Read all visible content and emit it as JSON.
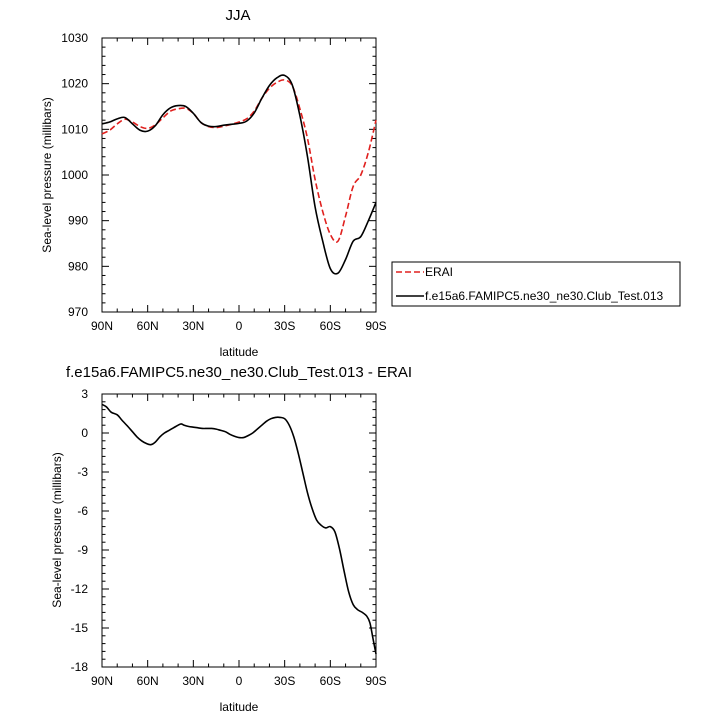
{
  "chart_data": [
    {
      "type": "line",
      "title": "JJA",
      "xlabel": "latitude",
      "ylabel": "Sea-level pressure (millibars)",
      "ylim": [
        970,
        1030
      ],
      "xlim": [
        -90,
        90
      ],
      "xticks": [
        "90N",
        "60N",
        "30N",
        "0",
        "30S",
        "60S",
        "90S"
      ],
      "yticks": [
        "970",
        "980",
        "990",
        "1000",
        "1010",
        "1020",
        "1030"
      ],
      "legend": "right",
      "series": [
        {
          "name": "ERAI",
          "color": "#e0201e",
          "dash": "dashed",
          "x": [
            -90,
            -85,
            -80,
            -75,
            -70,
            -65,
            -60,
            -55,
            -50,
            -45,
            -40,
            -35,
            -30,
            -25,
            -20,
            -15,
            -10,
            -5,
            0,
            5,
            10,
            15,
            20,
            25,
            30,
            35,
            40,
            45,
            50,
            55,
            60,
            65,
            70,
            75,
            80,
            85,
            90
          ],
          "y": [
            1009.0,
            1009.8,
            1011.2,
            1012.2,
            1011.6,
            1010.6,
            1010.2,
            1011.0,
            1012.5,
            1014.0,
            1014.5,
            1014.6,
            1013.5,
            1011.5,
            1010.6,
            1010.4,
            1010.7,
            1011.1,
            1011.6,
            1012.3,
            1014.0,
            1016.8,
            1019.0,
            1020.3,
            1020.8,
            1019.5,
            1014.5,
            1008.0,
            999.0,
            992.0,
            987.0,
            985.5,
            991.0,
            997.5,
            1000.0,
            1005.0,
            1012.0
          ]
        },
        {
          "name": "f.e15a6.FAMIPC5.ne30_ne30.Club_Test.013",
          "color": "#000000",
          "dash": "solid",
          "x": [
            -90,
            -85,
            -80,
            -75,
            -70,
            -65,
            -60,
            -55,
            -50,
            -45,
            -40,
            -35,
            -30,
            -25,
            -20,
            -15,
            -10,
            -5,
            0,
            5,
            10,
            15,
            20,
            25,
            30,
            35,
            40,
            45,
            50,
            55,
            60,
            65,
            70,
            75,
            80,
            85,
            90
          ],
          "y": [
            1011.2,
            1011.6,
            1012.3,
            1012.6,
            1011.2,
            1009.8,
            1009.6,
            1010.8,
            1013.2,
            1014.7,
            1015.2,
            1015.0,
            1013.5,
            1011.5,
            1010.7,
            1010.6,
            1010.9,
            1011.1,
            1011.3,
            1011.8,
            1013.6,
            1016.8,
            1019.6,
            1021.3,
            1021.8,
            1019.7,
            1013.0,
            1004.0,
            993.0,
            985.5,
            979.5,
            978.5,
            981.5,
            985.5,
            986.5,
            990.0,
            994.0
          ]
        }
      ]
    },
    {
      "type": "line",
      "title": "f.e15a6.FAMIPC5.ne30_ne30.Club_Test.013 - ERAI",
      "xlabel": "latitude",
      "ylabel": "Sea-level pressure (millibars)",
      "ylim": [
        -18,
        3
      ],
      "xlim": [
        -90,
        90
      ],
      "xticks": [
        "90N",
        "60N",
        "30N",
        "0",
        "30S",
        "60S",
        "90S"
      ],
      "yticks": [
        "-18",
        "-15",
        "-12",
        "-9",
        "-6",
        "-3",
        "0",
        "3"
      ],
      "series": [
        {
          "color": "#000000",
          "dash": "solid",
          "x": [
            -90,
            -87,
            -84,
            -80,
            -77,
            -73,
            -70,
            -67,
            -64,
            -61,
            -58,
            -55,
            -52,
            -49,
            -46,
            -43,
            -40,
            -38,
            -36,
            -33,
            -30,
            -27,
            -24,
            -21,
            -18,
            -15,
            -12,
            -9,
            -6,
            -3,
            0,
            3,
            6,
            9,
            12,
            15,
            18,
            21,
            24,
            27,
            30,
            33,
            36,
            39,
            42,
            45,
            48,
            51,
            54,
            57,
            60,
            63,
            66,
            69,
            72,
            75,
            78,
            81,
            84,
            86,
            88,
            90
          ],
          "y": [
            2.2,
            2.0,
            1.6,
            1.4,
            1.0,
            0.5,
            0.1,
            -0.3,
            -0.6,
            -0.8,
            -0.9,
            -0.7,
            -0.3,
            0.0,
            0.2,
            0.4,
            0.6,
            0.7,
            0.6,
            0.5,
            0.45,
            0.4,
            0.35,
            0.35,
            0.35,
            0.3,
            0.2,
            0.1,
            -0.1,
            -0.25,
            -0.35,
            -0.35,
            -0.2,
            0.0,
            0.3,
            0.6,
            0.9,
            1.1,
            1.2,
            1.2,
            1.1,
            0.6,
            -0.3,
            -1.6,
            -3.1,
            -4.6,
            -5.8,
            -6.7,
            -7.1,
            -7.3,
            -7.2,
            -7.6,
            -8.9,
            -10.6,
            -12.2,
            -13.2,
            -13.6,
            -13.8,
            -14.1,
            -14.6,
            -15.8,
            -17.0
          ]
        }
      ]
    }
  ]
}
